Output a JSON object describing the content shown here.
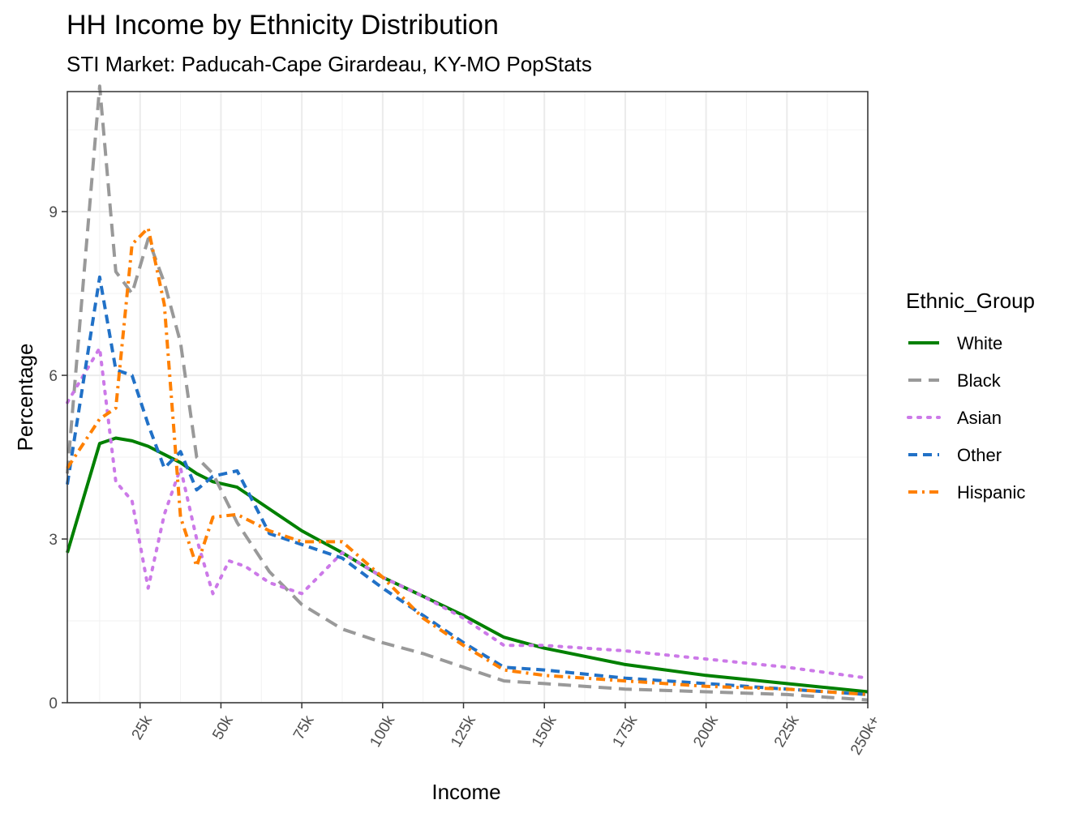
{
  "chart_data": {
    "type": "line",
    "title": "HH Income by Ethnicity Distribution",
    "subtitle": "STI Market: Paducah-Cape Girardeau, KY-MO PopStats",
    "xlabel": "Income",
    "ylabel": "Percentage",
    "x_ticks": [
      25000,
      50000,
      75000,
      100000,
      125000,
      150000,
      175000,
      200000,
      225000,
      250000
    ],
    "x_tick_labels": [
      "25k",
      "50k",
      "75k",
      "100k",
      "125k",
      "150k",
      "175k",
      "200k",
      "225k",
      "250k+"
    ],
    "y_ticks": [
      0,
      3,
      6,
      9
    ],
    "y_tick_labels": [
      "0",
      "3",
      "6",
      "9"
    ],
    "xlim": [
      2500,
      250000
    ],
    "ylim": [
      0,
      11.2
    ],
    "grid": true,
    "legend_title": "Ethnic_Group",
    "legend_position": "right",
    "series": [
      {
        "name": "White",
        "color": "#008000",
        "dash": "solid",
        "x": [
          2500,
          12500,
          17500,
          22500,
          27500,
          32500,
          37500,
          42500,
          47500,
          55000,
          65000,
          75000,
          87500,
          100000,
          112500,
          125000,
          137500,
          150000,
          175000,
          200000,
          225000,
          250000
        ],
        "y": [
          2.75,
          4.75,
          4.85,
          4.8,
          4.7,
          4.55,
          4.4,
          4.2,
          4.05,
          3.95,
          3.55,
          3.15,
          2.75,
          2.3,
          1.95,
          1.6,
          1.2,
          1.0,
          0.7,
          0.5,
          0.35,
          0.2
        ]
      },
      {
        "name": "Black",
        "color": "#999999",
        "dash": "long",
        "x": [
          2500,
          12500,
          17500,
          22500,
          27500,
          32500,
          37500,
          42500,
          47500,
          55000,
          65000,
          75000,
          87500,
          100000,
          112500,
          125000,
          137500,
          150000,
          175000,
          200000,
          225000,
          250000
        ],
        "y": [
          4.2,
          11.3,
          7.9,
          7.5,
          8.5,
          7.7,
          6.6,
          4.5,
          4.2,
          3.3,
          2.4,
          1.8,
          1.35,
          1.1,
          0.9,
          0.65,
          0.4,
          0.35,
          0.25,
          0.2,
          0.15,
          0.05
        ]
      },
      {
        "name": "Asian",
        "color": "#cc79e8",
        "dash": "dotted",
        "x": [
          2500,
          12500,
          17500,
          22500,
          27500,
          32500,
          37500,
          42500,
          47500,
          52500,
          57500,
          65000,
          75000,
          87500,
          100000,
          112500,
          125000,
          137500,
          150000,
          175000,
          200000,
          225000,
          250000
        ],
        "y": [
          5.5,
          6.5,
          4.05,
          3.7,
          2.1,
          3.45,
          4.3,
          3.0,
          2.0,
          2.6,
          2.5,
          2.2,
          2.0,
          2.75,
          2.3,
          1.95,
          1.55,
          1.05,
          1.05,
          0.95,
          0.8,
          0.65,
          0.45
        ]
      },
      {
        "name": "Other",
        "color": "#2171c7",
        "dash": "dashed",
        "x": [
          2500,
          12500,
          17500,
          22500,
          27500,
          32500,
          37500,
          42500,
          47500,
          55000,
          65000,
          75000,
          87500,
          100000,
          112500,
          125000,
          137500,
          150000,
          175000,
          200000,
          225000,
          250000
        ],
        "y": [
          4.0,
          7.8,
          6.1,
          6.0,
          5.1,
          4.3,
          4.6,
          3.9,
          4.15,
          4.25,
          3.1,
          2.9,
          2.65,
          2.1,
          1.6,
          1.1,
          0.65,
          0.6,
          0.45,
          0.35,
          0.25,
          0.15
        ]
      },
      {
        "name": "Hispanic",
        "color": "#ff8000",
        "dash": "dashdot",
        "x": [
          2500,
          12500,
          17500,
          22500,
          27500,
          32500,
          37500,
          42500,
          47500,
          55000,
          65000,
          75000,
          87500,
          100000,
          112500,
          125000,
          137500,
          150000,
          175000,
          200000,
          225000,
          250000
        ],
        "y": [
          4.3,
          5.2,
          5.4,
          8.4,
          8.7,
          7.3,
          3.4,
          2.5,
          3.4,
          3.45,
          3.15,
          2.95,
          2.95,
          2.3,
          1.55,
          1.05,
          0.6,
          0.5,
          0.4,
          0.3,
          0.25,
          0.15
        ]
      }
    ]
  }
}
